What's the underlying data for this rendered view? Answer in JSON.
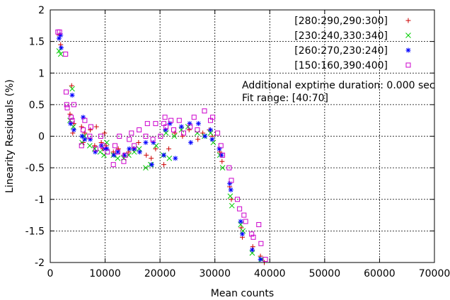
{
  "chart_data": {
    "type": "scatter",
    "xlabel": "Mean counts",
    "ylabel": "Linearity Residuals (%)",
    "xlim": [
      0,
      70000
    ],
    "ylim": [
      -2,
      2
    ],
    "xticks": [
      0,
      10000,
      20000,
      30000,
      40000,
      50000,
      60000,
      70000
    ],
    "yticks": [
      -2,
      -1.5,
      -1,
      -0.5,
      0,
      0.5,
      1,
      1.5,
      2
    ],
    "xtick_labels": [
      "0",
      "10000",
      "20000",
      "30000",
      "40000",
      "50000",
      "60000",
      "70000"
    ],
    "ytick_labels": [
      "-2",
      "-1.5",
      "-1",
      "-0.5",
      "0",
      "0.5",
      "1",
      "1.5",
      "2"
    ],
    "grid": true,
    "legend_position": "top-right",
    "annotations": [
      "Additional exptime duration: 0.000 sec",
      "Fit range: [40:70]"
    ],
    "series": [
      {
        "name": "[280:290,290:300]",
        "marker": "plus",
        "color": "#cc0000",
        "points": [
          [
            1600,
            1.6
          ],
          [
            1900,
            1.45
          ],
          [
            3600,
            0.35
          ],
          [
            3900,
            0.8
          ],
          [
            4100,
            0.05
          ],
          [
            4300,
            0.2
          ],
          [
            5700,
            0.15
          ],
          [
            6000,
            -0.1
          ],
          [
            6300,
            0.05
          ],
          [
            7300,
            0.1
          ],
          [
            8100,
            -0.15
          ],
          [
            8400,
            0.15
          ],
          [
            9300,
            -0.1
          ],
          [
            9600,
            -0.2
          ],
          [
            9900,
            0.05
          ],
          [
            10200,
            -0.15
          ],
          [
            11500,
            -0.25
          ],
          [
            12400,
            -0.2
          ],
          [
            13400,
            -0.3
          ],
          [
            14300,
            -0.25
          ],
          [
            15200,
            -0.2
          ],
          [
            16100,
            -0.1
          ],
          [
            17500,
            -0.3
          ],
          [
            18400,
            -0.35
          ],
          [
            19200,
            -0.2
          ],
          [
            20700,
            -0.45
          ],
          [
            21000,
            0.1
          ],
          [
            21600,
            -0.2
          ],
          [
            22700,
            0.05
          ],
          [
            24100,
            0.0
          ],
          [
            25300,
            0.1
          ],
          [
            26900,
            -0.05
          ],
          [
            27800,
            0.05
          ],
          [
            29000,
            0.1
          ],
          [
            29500,
            0.0
          ],
          [
            30900,
            -0.25
          ],
          [
            31300,
            -0.4
          ],
          [
            32700,
            -0.8
          ],
          [
            33000,
            -1.0
          ],
          [
            34800,
            -1.45
          ],
          [
            35000,
            -1.6
          ],
          [
            36900,
            -1.75
          ],
          [
            38300,
            -1.9
          ],
          [
            39000,
            -2.0
          ]
        ]
      },
      {
        "name": "[230:240,330:340]",
        "marker": "cross",
        "color": "#00cc00",
        "points": [
          [
            1600,
            1.35
          ],
          [
            1900,
            1.3
          ],
          [
            3600,
            0.25
          ],
          [
            4000,
            0.75
          ],
          [
            4200,
            0.15
          ],
          [
            5800,
            -0.1
          ],
          [
            6200,
            0.0
          ],
          [
            7200,
            -0.15
          ],
          [
            8100,
            -0.2
          ],
          [
            9100,
            -0.25
          ],
          [
            9800,
            -0.3
          ],
          [
            10300,
            -0.1
          ],
          [
            11500,
            -0.3
          ],
          [
            12300,
            -0.35
          ],
          [
            13400,
            -0.35
          ],
          [
            14300,
            -0.3
          ],
          [
            15300,
            -0.25
          ],
          [
            16200,
            -0.2
          ],
          [
            17400,
            -0.5
          ],
          [
            18300,
            -0.45
          ],
          [
            19300,
            -0.15
          ],
          [
            20600,
            -0.3
          ],
          [
            21100,
            0.05
          ],
          [
            21700,
            -0.35
          ],
          [
            22600,
            0.0
          ],
          [
            23900,
            0.1
          ],
          [
            25100,
            0.15
          ],
          [
            26800,
            0.05
          ],
          [
            28100,
            0.0
          ],
          [
            29200,
            0.05
          ],
          [
            29700,
            -0.1
          ],
          [
            30900,
            -0.3
          ],
          [
            31400,
            -0.5
          ],
          [
            32800,
            -0.95
          ],
          [
            33100,
            -1.1
          ],
          [
            34700,
            -1.4
          ],
          [
            35100,
            -1.5
          ],
          [
            36800,
            -1.85
          ],
          [
            38500,
            -1.95
          ]
        ]
      },
      {
        "name": "[260:270,230:240]",
        "marker": "star",
        "color": "#0000ff",
        "points": [
          [
            1600,
            1.55
          ],
          [
            1900,
            1.6
          ],
          [
            2000,
            1.4
          ],
          [
            3700,
            0.2
          ],
          [
            4000,
            0.65
          ],
          [
            4300,
            0.1
          ],
          [
            5800,
            0.0
          ],
          [
            6000,
            0.3
          ],
          [
            6300,
            -0.05
          ],
          [
            7300,
            -0.05
          ],
          [
            8200,
            -0.25
          ],
          [
            9300,
            -0.15
          ],
          [
            10000,
            -0.2
          ],
          [
            10300,
            -0.2
          ],
          [
            11600,
            -0.3
          ],
          [
            12300,
            -0.25
          ],
          [
            13500,
            -0.3
          ],
          [
            14400,
            -0.2
          ],
          [
            15300,
            -0.2
          ],
          [
            16300,
            -0.25
          ],
          [
            17400,
            -0.1
          ],
          [
            18500,
            -0.45
          ],
          [
            18800,
            -0.1
          ],
          [
            20700,
            -0.3
          ],
          [
            21000,
            0.1
          ],
          [
            21800,
            0.2
          ],
          [
            22800,
            -0.35
          ],
          [
            23900,
            0.15
          ],
          [
            25400,
            0.2
          ],
          [
            25600,
            -0.1
          ],
          [
            27000,
            0.2
          ],
          [
            28200,
            0.0
          ],
          [
            29200,
            0.1
          ],
          [
            29500,
            -0.05
          ],
          [
            30800,
            -0.2
          ],
          [
            31200,
            -0.3
          ],
          [
            32700,
            -0.75
          ],
          [
            32900,
            -0.85
          ],
          [
            34700,
            -1.35
          ],
          [
            35000,
            -1.55
          ],
          [
            36800,
            -1.8
          ],
          [
            38300,
            -1.95
          ]
        ]
      },
      {
        "name": "[150:160,390:400]",
        "marker": "square",
        "color": "#cc00cc",
        "points": [
          [
            1400,
            1.65
          ],
          [
            1700,
            1.65
          ],
          [
            2800,
            1.3
          ],
          [
            2900,
            0.7
          ],
          [
            3000,
            0.5
          ],
          [
            3100,
            0.45
          ],
          [
            3800,
            0.3
          ],
          [
            4000,
            0.25
          ],
          [
            4300,
            0.5
          ],
          [
            5700,
            -0.15
          ],
          [
            6000,
            0.1
          ],
          [
            6300,
            0.25
          ],
          [
            7200,
            0.0
          ],
          [
            7400,
            0.15
          ],
          [
            8300,
            -0.2
          ],
          [
            9200,
            0.0
          ],
          [
            9600,
            -0.15
          ],
          [
            10400,
            -0.25
          ],
          [
            11500,
            -0.45
          ],
          [
            11800,
            -0.15
          ],
          [
            12300,
            -0.25
          ],
          [
            12600,
            0.0
          ],
          [
            13400,
            -0.4
          ],
          [
            13700,
            -0.3
          ],
          [
            14400,
            -0.05
          ],
          [
            14800,
            0.05
          ],
          [
            15300,
            -0.15
          ],
          [
            16200,
            0.1
          ],
          [
            17400,
            0.0
          ],
          [
            17700,
            0.2
          ],
          [
            18700,
            -0.05
          ],
          [
            19200,
            0.2
          ],
          [
            20100,
            0.0
          ],
          [
            20700,
            0.2
          ],
          [
            20900,
            0.3
          ],
          [
            21100,
            0.15
          ],
          [
            22000,
            0.25
          ],
          [
            22500,
            0.1
          ],
          [
            23500,
            0.25
          ],
          [
            24300,
            0.05
          ],
          [
            25500,
            0.15
          ],
          [
            26200,
            0.3
          ],
          [
            26800,
            0.1
          ],
          [
            28100,
            0.4
          ],
          [
            29200,
            0.25
          ],
          [
            29600,
            0.3
          ],
          [
            30500,
            0.05
          ],
          [
            31100,
            -0.15
          ],
          [
            31400,
            -0.3
          ],
          [
            32600,
            -0.5
          ],
          [
            33000,
            -0.7
          ],
          [
            34100,
            -1.0
          ],
          [
            34500,
            -1.15
          ],
          [
            35300,
            -1.25
          ],
          [
            35600,
            -1.35
          ],
          [
            36700,
            -1.55
          ],
          [
            37000,
            -1.6
          ],
          [
            38000,
            -1.4
          ],
          [
            38400,
            -1.7
          ],
          [
            39200,
            -1.95
          ]
        ]
      }
    ]
  }
}
